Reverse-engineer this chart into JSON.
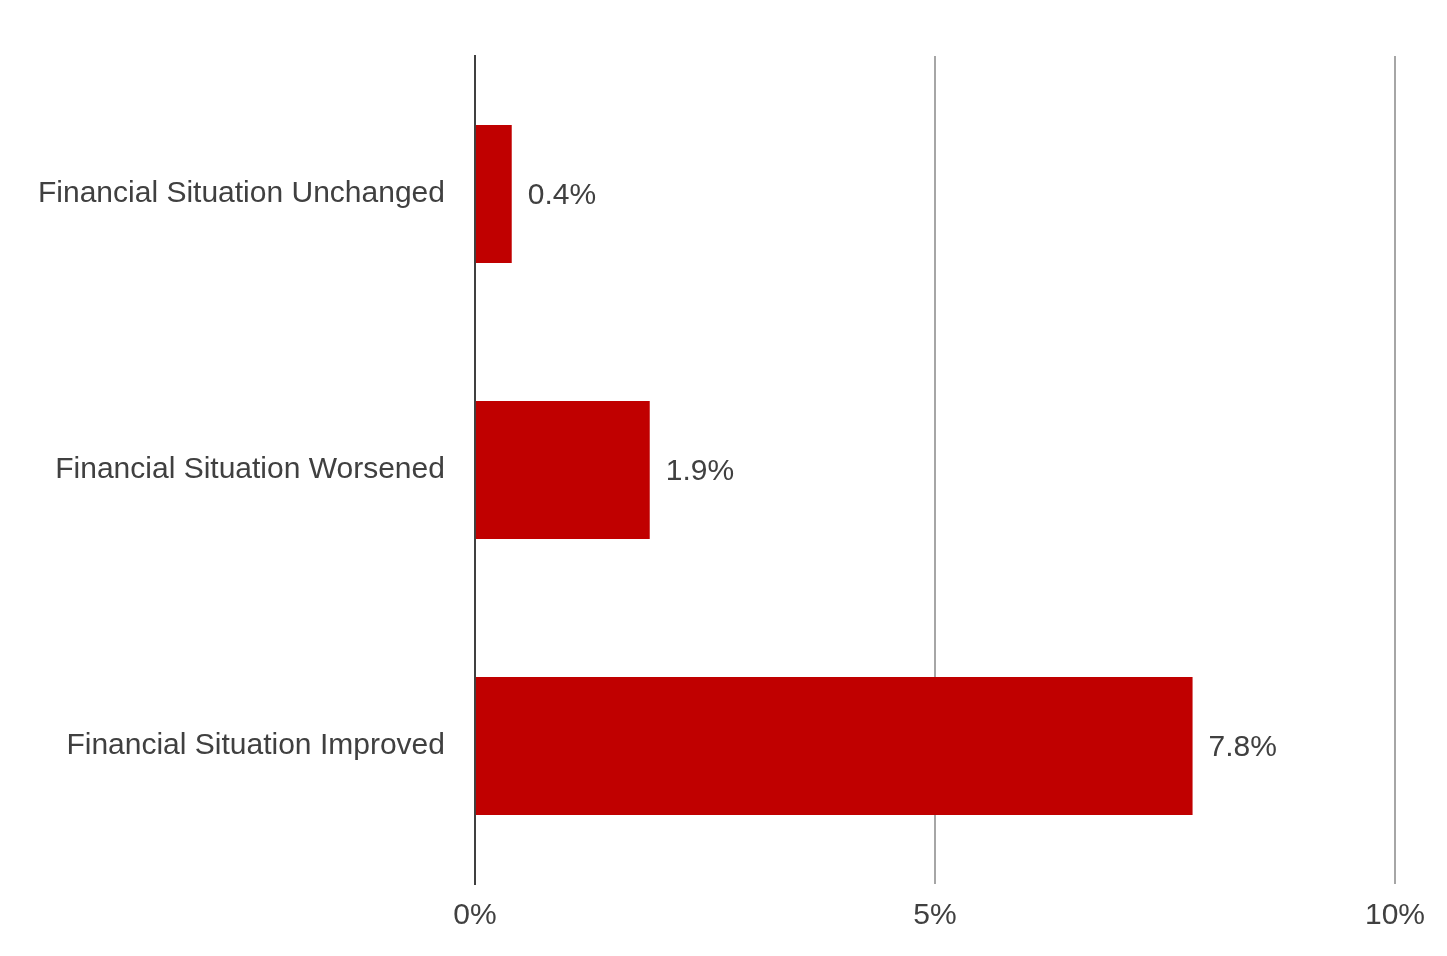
{
  "chart_data": {
    "type": "bar",
    "orientation": "horizontal",
    "categories": [
      "Financial Situation Unchanged",
      "Financial Situation Worsened",
      "Financial Situation Improved"
    ],
    "values": [
      0.4,
      1.9,
      7.8
    ],
    "value_labels": [
      "0.4%",
      "1.9%",
      "7.8%"
    ],
    "color": "#c00000",
    "xlim": [
      0,
      10
    ],
    "xticks": [
      {
        "value": 0,
        "label": "0%"
      },
      {
        "value": 5,
        "label": "5%"
      },
      {
        "value": 10,
        "label": "10%"
      }
    ],
    "grid": "x",
    "legend": false
  }
}
